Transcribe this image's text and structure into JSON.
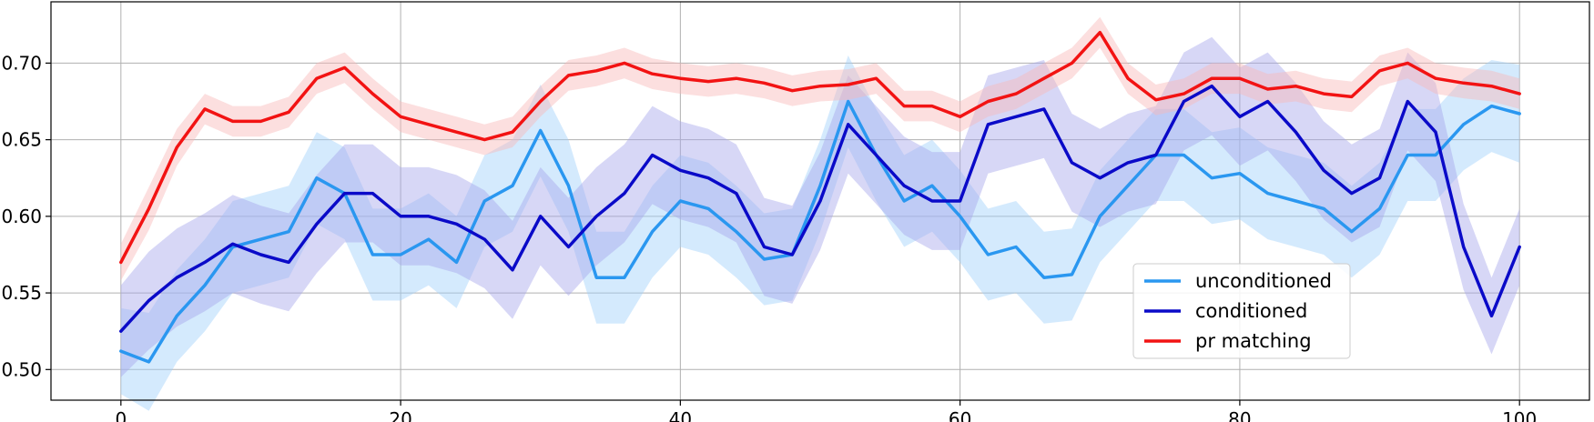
{
  "chart_data": {
    "type": "line",
    "title": "",
    "xlabel": "",
    "ylabel": "",
    "xlim": [
      -5,
      105
    ],
    "ylim": [
      0.48,
      0.74
    ],
    "xticks": [
      0,
      20,
      40,
      60,
      80,
      100
    ],
    "yticks": [
      0.5,
      0.55,
      0.6,
      0.65,
      0.7
    ],
    "xtick_labels": [
      "0",
      "20",
      "40",
      "60",
      "80",
      "100"
    ],
    "ytick_labels": [
      "0.50",
      "0.55",
      "0.60",
      "0.65",
      "0.70"
    ],
    "grid": true,
    "legend_position": "lower-right",
    "x": [
      0,
      2,
      4,
      6,
      8,
      10,
      12,
      14,
      16,
      18,
      20,
      22,
      24,
      26,
      28,
      30,
      32,
      34,
      36,
      38,
      40,
      42,
      44,
      46,
      48,
      50,
      52,
      54,
      56,
      58,
      60,
      62,
      64,
      66,
      68,
      70,
      72,
      74,
      76,
      78,
      80,
      82,
      84,
      86,
      88,
      90,
      92,
      94,
      96,
      98,
      100
    ],
    "series": [
      {
        "name": "unconditioned",
        "color": "#2a97f0",
        "band_color": "#9fd0fa",
        "values": [
          0.512,
          0.505,
          0.535,
          0.555,
          0.58,
          0.585,
          0.59,
          0.625,
          0.615,
          0.575,
          0.575,
          0.585,
          0.57,
          0.61,
          0.62,
          0.656,
          0.62,
          0.56,
          0.56,
          0.59,
          0.61,
          0.605,
          0.59,
          0.572,
          0.575,
          0.62,
          0.675,
          0.64,
          0.61,
          0.62,
          0.6,
          0.575,
          0.58,
          0.56,
          0.562,
          0.6,
          0.62,
          0.64,
          0.64,
          0.625,
          0.628,
          0.615,
          0.61,
          0.605,
          0.59,
          0.605,
          0.64,
          0.64,
          0.66,
          0.672,
          0.667
        ],
        "band": [
          0.028,
          0.032,
          0.03,
          0.03,
          0.03,
          0.03,
          0.03,
          0.03,
          0.03,
          0.03,
          0.03,
          0.03,
          0.03,
          0.03,
          0.03,
          0.03,
          0.03,
          0.03,
          0.03,
          0.03,
          0.03,
          0.03,
          0.03,
          0.03,
          0.03,
          0.03,
          0.03,
          0.03,
          0.03,
          0.03,
          0.03,
          0.03,
          0.03,
          0.03,
          0.03,
          0.03,
          0.03,
          0.03,
          0.03,
          0.03,
          0.03,
          0.03,
          0.03,
          0.03,
          0.03,
          0.03,
          0.03,
          0.03,
          0.03,
          0.03,
          0.032
        ]
      },
      {
        "name": "conditioned",
        "color": "#0a0ac8",
        "band_color": "#a7a7ea",
        "values": [
          0.525,
          0.545,
          0.56,
          0.57,
          0.582,
          0.575,
          0.57,
          0.595,
          0.615,
          0.615,
          0.6,
          0.6,
          0.595,
          0.585,
          0.565,
          0.6,
          0.58,
          0.6,
          0.615,
          0.64,
          0.63,
          0.625,
          0.615,
          0.58,
          0.575,
          0.61,
          0.66,
          0.64,
          0.62,
          0.61,
          0.61,
          0.66,
          0.665,
          0.67,
          0.635,
          0.625,
          0.635,
          0.64,
          0.675,
          0.685,
          0.665,
          0.675,
          0.655,
          0.63,
          0.615,
          0.625,
          0.675,
          0.655,
          0.58,
          0.535,
          0.58
        ],
        "band": [
          0.03,
          0.032,
          0.032,
          0.032,
          0.032,
          0.032,
          0.032,
          0.032,
          0.032,
          0.032,
          0.032,
          0.032,
          0.032,
          0.032,
          0.032,
          0.032,
          0.032,
          0.032,
          0.032,
          0.032,
          0.032,
          0.032,
          0.032,
          0.032,
          0.032,
          0.032,
          0.032,
          0.032,
          0.032,
          0.032,
          0.032,
          0.032,
          0.032,
          0.032,
          0.032,
          0.032,
          0.032,
          0.032,
          0.032,
          0.032,
          0.032,
          0.032,
          0.032,
          0.032,
          0.032,
          0.032,
          0.032,
          0.032,
          0.028,
          0.025,
          0.025
        ]
      },
      {
        "name": "pr matching",
        "color": "#f21313",
        "band_color": "#f9b7b7",
        "values": [
          0.57,
          0.605,
          0.645,
          0.67,
          0.662,
          0.662,
          0.668,
          0.69,
          0.697,
          0.68,
          0.665,
          0.66,
          0.655,
          0.65,
          0.655,
          0.675,
          0.692,
          0.695,
          0.7,
          0.693,
          0.69,
          0.688,
          0.69,
          0.687,
          0.682,
          0.685,
          0.686,
          0.69,
          0.672,
          0.672,
          0.665,
          0.675,
          0.68,
          0.69,
          0.7,
          0.72,
          0.69,
          0.676,
          0.68,
          0.69,
          0.69,
          0.683,
          0.685,
          0.68,
          0.678,
          0.695,
          0.7,
          0.69,
          0.687,
          0.685,
          0.68
        ],
        "band": [
          0.012,
          0.014,
          0.012,
          0.01,
          0.01,
          0.01,
          0.01,
          0.01,
          0.01,
          0.01,
          0.01,
          0.01,
          0.01,
          0.01,
          0.01,
          0.01,
          0.01,
          0.01,
          0.01,
          0.01,
          0.01,
          0.01,
          0.01,
          0.01,
          0.01,
          0.01,
          0.01,
          0.01,
          0.01,
          0.01,
          0.01,
          0.01,
          0.01,
          0.01,
          0.01,
          0.01,
          0.01,
          0.01,
          0.01,
          0.01,
          0.01,
          0.01,
          0.01,
          0.01,
          0.01,
          0.01,
          0.01,
          0.01,
          0.01,
          0.01,
          0.01
        ]
      }
    ]
  }
}
